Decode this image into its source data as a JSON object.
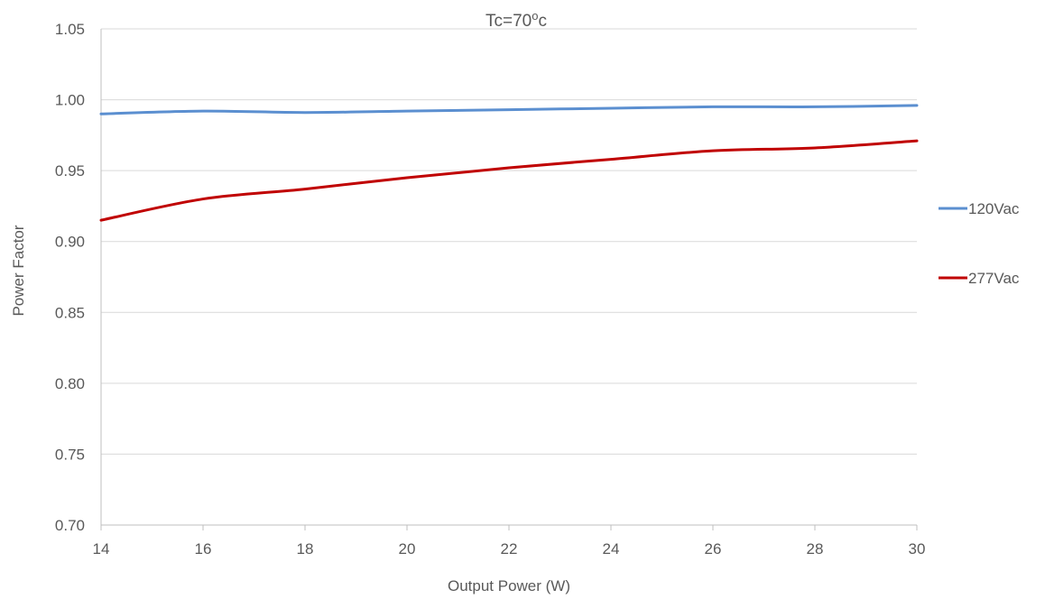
{
  "chart_data": {
    "type": "line",
    "title": "Tc=70",
    "title_superscript": "o",
    "title_suffix": "c",
    "xlabel": "Output Power (W)",
    "ylabel": "Power Factor",
    "xlim": [
      14,
      30
    ],
    "ylim": [
      0.7,
      1.05
    ],
    "x_ticks": [
      "14",
      "16",
      "18",
      "20",
      "22",
      "24",
      "26",
      "28",
      "30"
    ],
    "y_ticks": [
      "0.70",
      "0.75",
      "0.80",
      "0.85",
      "0.90",
      "0.95",
      "1.00",
      "1.05"
    ],
    "grid": true,
    "legend_position": "right",
    "series": [
      {
        "name": "120Vac",
        "color": "#5b8fd0",
        "x": [
          14,
          16,
          18,
          20,
          22,
          24,
          26,
          28,
          30
        ],
        "y": [
          0.99,
          0.992,
          0.991,
          0.992,
          0.993,
          0.994,
          0.995,
          0.995,
          0.996
        ]
      },
      {
        "name": "277Vac",
        "color": "#c00000",
        "x": [
          14,
          16,
          18,
          20,
          22,
          24,
          26,
          28,
          30
        ],
        "y": [
          0.915,
          0.93,
          0.937,
          0.945,
          0.952,
          0.958,
          0.964,
          0.966,
          0.971
        ]
      }
    ]
  }
}
